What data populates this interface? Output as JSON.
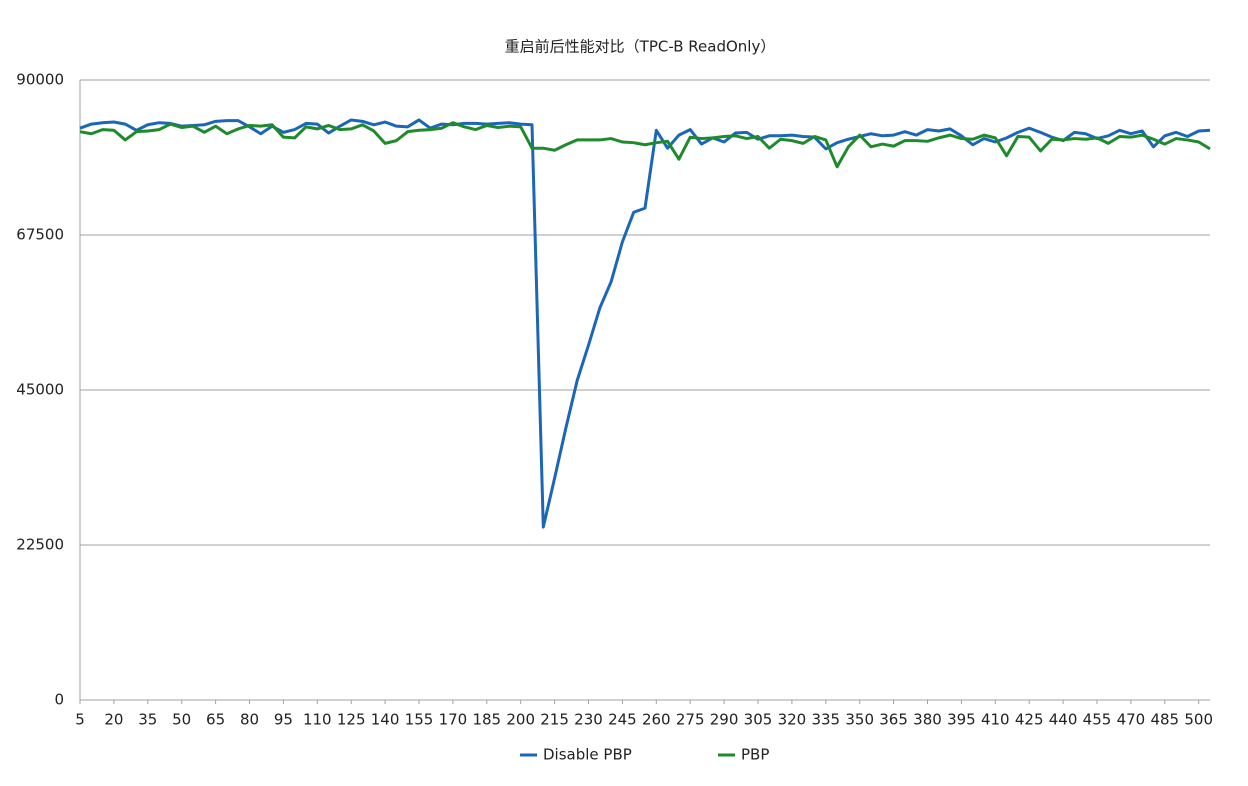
{
  "chart_data": {
    "type": "line",
    "title": "重启前后性能对比（TPC-B ReadOnly）",
    "x": [
      5,
      10,
      15,
      20,
      25,
      30,
      35,
      40,
      45,
      50,
      55,
      60,
      65,
      70,
      75,
      80,
      85,
      90,
      95,
      100,
      105,
      110,
      115,
      120,
      125,
      130,
      135,
      140,
      145,
      150,
      155,
      160,
      165,
      170,
      175,
      180,
      185,
      190,
      195,
      200,
      205,
      210,
      215,
      220,
      225,
      230,
      235,
      240,
      245,
      250,
      255,
      260,
      265,
      270,
      275,
      280,
      285,
      290,
      295,
      300,
      305,
      310,
      315,
      320,
      325,
      330,
      335,
      340,
      345,
      350,
      355,
      360,
      365,
      370,
      375,
      380,
      385,
      390,
      395,
      400,
      405,
      410,
      415,
      420,
      425,
      430,
      435,
      440,
      445,
      450,
      455,
      460,
      465,
      470,
      475,
      480,
      485,
      490,
      495,
      500,
      505
    ],
    "xlim": [
      5,
      505
    ],
    "xticks": [
      5,
      20,
      35,
      50,
      65,
      80,
      95,
      110,
      125,
      140,
      155,
      170,
      185,
      200,
      215,
      230,
      245,
      260,
      275,
      290,
      305,
      320,
      335,
      350,
      365,
      380,
      395,
      410,
      425,
      440,
      455,
      470,
      485,
      500
    ],
    "ylim": [
      0,
      90000
    ],
    "yticks": [
      0,
      22500,
      45000,
      67500,
      90000
    ],
    "grid": true,
    "legend": "bottom",
    "series": [
      {
        "name": "Disable PBP",
        "color": "#1c66b8",
        "values": [
          83000,
          83600,
          83800,
          83900,
          83600,
          82700,
          83500,
          83800,
          83700,
          83300,
          83400,
          83500,
          84000,
          84100,
          84100,
          83200,
          82200,
          83300,
          82400,
          82800,
          83700,
          83600,
          82300,
          83300,
          84200,
          84000,
          83500,
          83900,
          83300,
          83200,
          84200,
          83000,
          83600,
          83500,
          83700,
          83700,
          83600,
          83700,
          83800,
          83600,
          83500,
          25100,
          32200,
          39500,
          46400,
          51500,
          56900,
          60700,
          66500,
          70800,
          71400,
          82700,
          80100,
          82000,
          82800,
          80700,
          81600,
          81000,
          82300,
          82400,
          81400,
          81900,
          81900,
          82000,
          81800,
          81700,
          80000,
          80900,
          81400,
          81800,
          82200,
          81900,
          82000,
          82500,
          82000,
          82800,
          82600,
          82900,
          81900,
          80600,
          81500,
          81000,
          81600,
          82400,
          83000,
          82400,
          81700,
          81200,
          82400,
          82200,
          81500,
          81900,
          82700,
          82200,
          82600,
          80300,
          81900,
          82400,
          81800,
          82600,
          82700
        ]
      },
      {
        "name": "PBP",
        "color": "#1f8a2c",
        "values": [
          82500,
          82200,
          82800,
          82700,
          81300,
          82500,
          82600,
          82800,
          83600,
          83100,
          83300,
          82400,
          83300,
          82200,
          82900,
          83400,
          83300,
          83500,
          81700,
          81600,
          83200,
          82900,
          83400,
          82800,
          82900,
          83500,
          82600,
          80800,
          81200,
          82500,
          82700,
          82800,
          83000,
          83800,
          83200,
          82800,
          83400,
          83100,
          83300,
          83200,
          80100,
          80100,
          79800,
          80600,
          81300,
          81300,
          81300,
          81500,
          81000,
          80900,
          80600,
          80900,
          81100,
          78500,
          81700,
          81500,
          81600,
          81800,
          81900,
          81500,
          81800,
          80100,
          81400,
          81200,
          80800,
          81800,
          81300,
          77400,
          80300,
          82000,
          80300,
          80700,
          80400,
          81200,
          81200,
          81100,
          81600,
          82000,
          81500,
          81400,
          82000,
          81600,
          79000,
          81800,
          81700,
          79700,
          81400,
          81300,
          81500,
          81400,
          81600,
          80800,
          81800,
          81700,
          82000,
          81400,
          80700,
          81500,
          81300,
          81000,
          80000
        ]
      }
    ]
  }
}
